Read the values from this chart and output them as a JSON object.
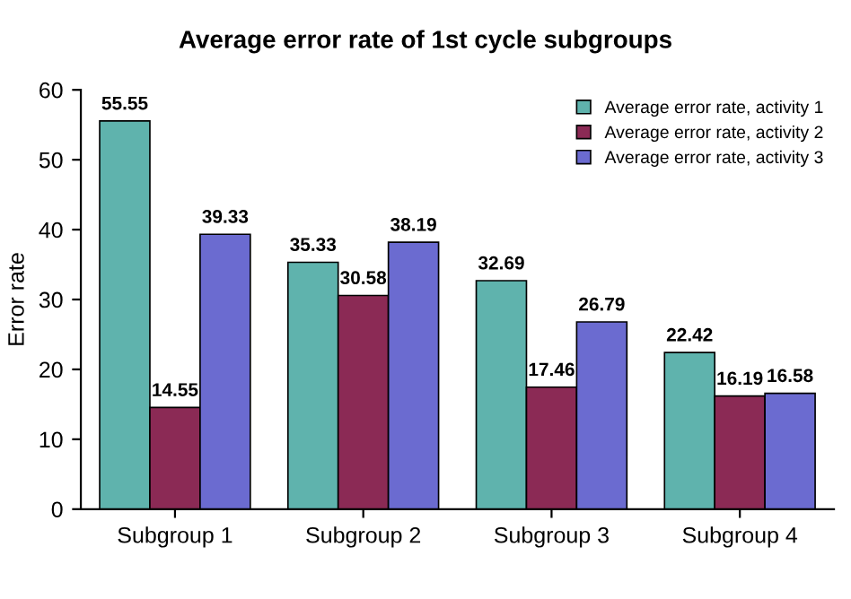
{
  "chart_data": {
    "type": "bar",
    "title": "Average error rate of 1st cycle subgroups",
    "ylabel": "Error rate",
    "categories": [
      "Subgroup 1",
      "Subgroup 2",
      "Subgroup 3",
      "Subgroup 4"
    ],
    "series": [
      {
        "name": "Average error rate, activity 1",
        "color": "#5fb3ad",
        "values": [
          55.55,
          35.33,
          32.69,
          22.42
        ]
      },
      {
        "name": "Average error rate, activity 2",
        "color": "#8b2a55",
        "values": [
          14.55,
          30.58,
          17.46,
          16.19
        ]
      },
      {
        "name": "Average error rate, activity 3",
        "color": "#6b6bd0",
        "values": [
          39.33,
          38.19,
          26.79,
          16.58
        ]
      }
    ],
    "ylim": [
      0,
      60
    ],
    "yticks": [
      0,
      10,
      20,
      30,
      40,
      50,
      60
    ],
    "data_labels": true,
    "legend": "top right",
    "grid": false
  }
}
